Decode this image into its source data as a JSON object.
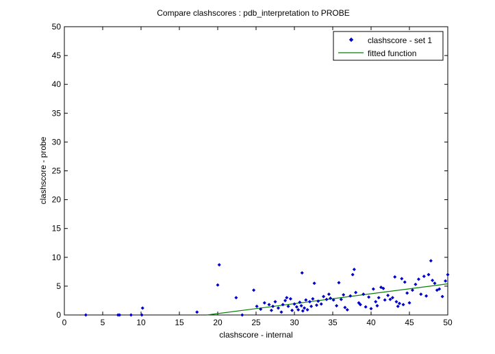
{
  "chart_data": {
    "type": "scatter",
    "title": "Compare clashscores : pdb_interpretation to PROBE",
    "xlabel": "clashscore - internal",
    "ylabel": "clashscore - probe",
    "xlim": [
      0,
      50
    ],
    "ylim": [
      0,
      50
    ],
    "xticks": [
      0,
      5,
      10,
      15,
      20,
      25,
      30,
      35,
      40,
      45,
      50
    ],
    "yticks": [
      0,
      5,
      10,
      15,
      20,
      25,
      30,
      35,
      40,
      45,
      50
    ],
    "xtick_labels": [
      "0",
      "5",
      "10",
      "15",
      "20",
      "25",
      "30",
      "35",
      "40",
      "45",
      "50"
    ],
    "ytick_labels": [
      "0",
      "5",
      "10",
      "15",
      "20",
      "25",
      "30",
      "35",
      "40",
      "45",
      "50"
    ],
    "grid": false,
    "legend_position": "top-right",
    "series": [
      {
        "name": "clashscore - set 1",
        "kind": "scatter",
        "marker": "diamond",
        "color": "#0000cc",
        "points": [
          [
            2.8,
            0.0
          ],
          [
            7.0,
            0.0
          ],
          [
            7.2,
            0.0
          ],
          [
            8.7,
            0.0
          ],
          [
            10.1,
            0.0
          ],
          [
            10.2,
            1.2
          ],
          [
            17.3,
            0.5
          ],
          [
            20.0,
            5.2
          ],
          [
            20.2,
            8.7
          ],
          [
            22.4,
            3.0
          ],
          [
            23.2,
            0.0
          ],
          [
            24.7,
            4.3
          ],
          [
            25.1,
            1.5
          ],
          [
            25.6,
            1.0
          ],
          [
            26.1,
            2.1
          ],
          [
            26.7,
            1.8
          ],
          [
            27.0,
            0.8
          ],
          [
            27.2,
            1.5
          ],
          [
            27.5,
            2.3
          ],
          [
            27.9,
            1.2
          ],
          [
            28.3,
            0.5
          ],
          [
            28.5,
            1.8
          ],
          [
            28.8,
            2.5
          ],
          [
            29.0,
            3.0
          ],
          [
            29.2,
            1.5
          ],
          [
            29.5,
            2.8
          ],
          [
            29.7,
            0.8
          ],
          [
            30.0,
            1.9
          ],
          [
            30.3,
            1.4
          ],
          [
            30.5,
            0.9
          ],
          [
            30.7,
            2.2
          ],
          [
            30.9,
            1.6
          ],
          [
            31.0,
            7.3
          ],
          [
            31.1,
            0.7
          ],
          [
            31.3,
            1.2
          ],
          [
            31.5,
            2.6
          ],
          [
            31.7,
            0.9
          ],
          [
            32.0,
            2.3
          ],
          [
            32.2,
            1.5
          ],
          [
            32.4,
            2.8
          ],
          [
            32.6,
            5.5
          ],
          [
            32.9,
            1.7
          ],
          [
            33.1,
            2.4
          ],
          [
            33.5,
            1.9
          ],
          [
            33.8,
            3.2
          ],
          [
            34.2,
            2.7
          ],
          [
            34.5,
            3.6
          ],
          [
            34.7,
            2.9
          ],
          [
            35.1,
            2.6
          ],
          [
            35.5,
            1.6
          ],
          [
            35.8,
            5.6
          ],
          [
            36.1,
            2.7
          ],
          [
            36.4,
            3.5
          ],
          [
            36.6,
            1.3
          ],
          [
            36.9,
            0.9
          ],
          [
            37.3,
            3.3
          ],
          [
            37.6,
            7.0
          ],
          [
            37.8,
            7.9
          ],
          [
            38.0,
            3.9
          ],
          [
            38.4,
            2.1
          ],
          [
            38.6,
            1.8
          ],
          [
            39.0,
            3.6
          ],
          [
            39.3,
            1.4
          ],
          [
            39.7,
            3.1
          ],
          [
            40.0,
            1.1
          ],
          [
            40.3,
            4.5
          ],
          [
            40.6,
            2.3
          ],
          [
            40.8,
            1.6
          ],
          [
            41.0,
            3.0
          ],
          [
            41.3,
            4.8
          ],
          [
            41.6,
            4.6
          ],
          [
            41.8,
            2.6
          ],
          [
            42.2,
            3.4
          ],
          [
            42.5,
            2.7
          ],
          [
            42.8,
            3.0
          ],
          [
            43.1,
            6.6
          ],
          [
            43.3,
            2.3
          ],
          [
            43.5,
            1.5
          ],
          [
            43.7,
            2.0
          ],
          [
            44.0,
            6.3
          ],
          [
            44.2,
            1.8
          ],
          [
            44.4,
            5.7
          ],
          [
            44.7,
            3.8
          ],
          [
            45.0,
            2.1
          ],
          [
            45.4,
            4.3
          ],
          [
            45.8,
            5.3
          ],
          [
            46.2,
            6.2
          ],
          [
            46.5,
            3.6
          ],
          [
            46.9,
            6.7
          ],
          [
            47.2,
            3.3
          ],
          [
            47.5,
            7.0
          ],
          [
            47.8,
            9.4
          ],
          [
            48.0,
            6.0
          ],
          [
            48.3,
            5.5
          ],
          [
            48.6,
            4.3
          ],
          [
            48.9,
            4.5
          ],
          [
            49.3,
            3.2
          ],
          [
            49.7,
            5.9
          ],
          [
            50.0,
            7.0
          ]
        ]
      },
      {
        "name": "fitted function",
        "kind": "line",
        "color": "#007f00",
        "points": [
          [
            18.6,
            0.0
          ],
          [
            50.0,
            5.4
          ]
        ]
      }
    ]
  }
}
